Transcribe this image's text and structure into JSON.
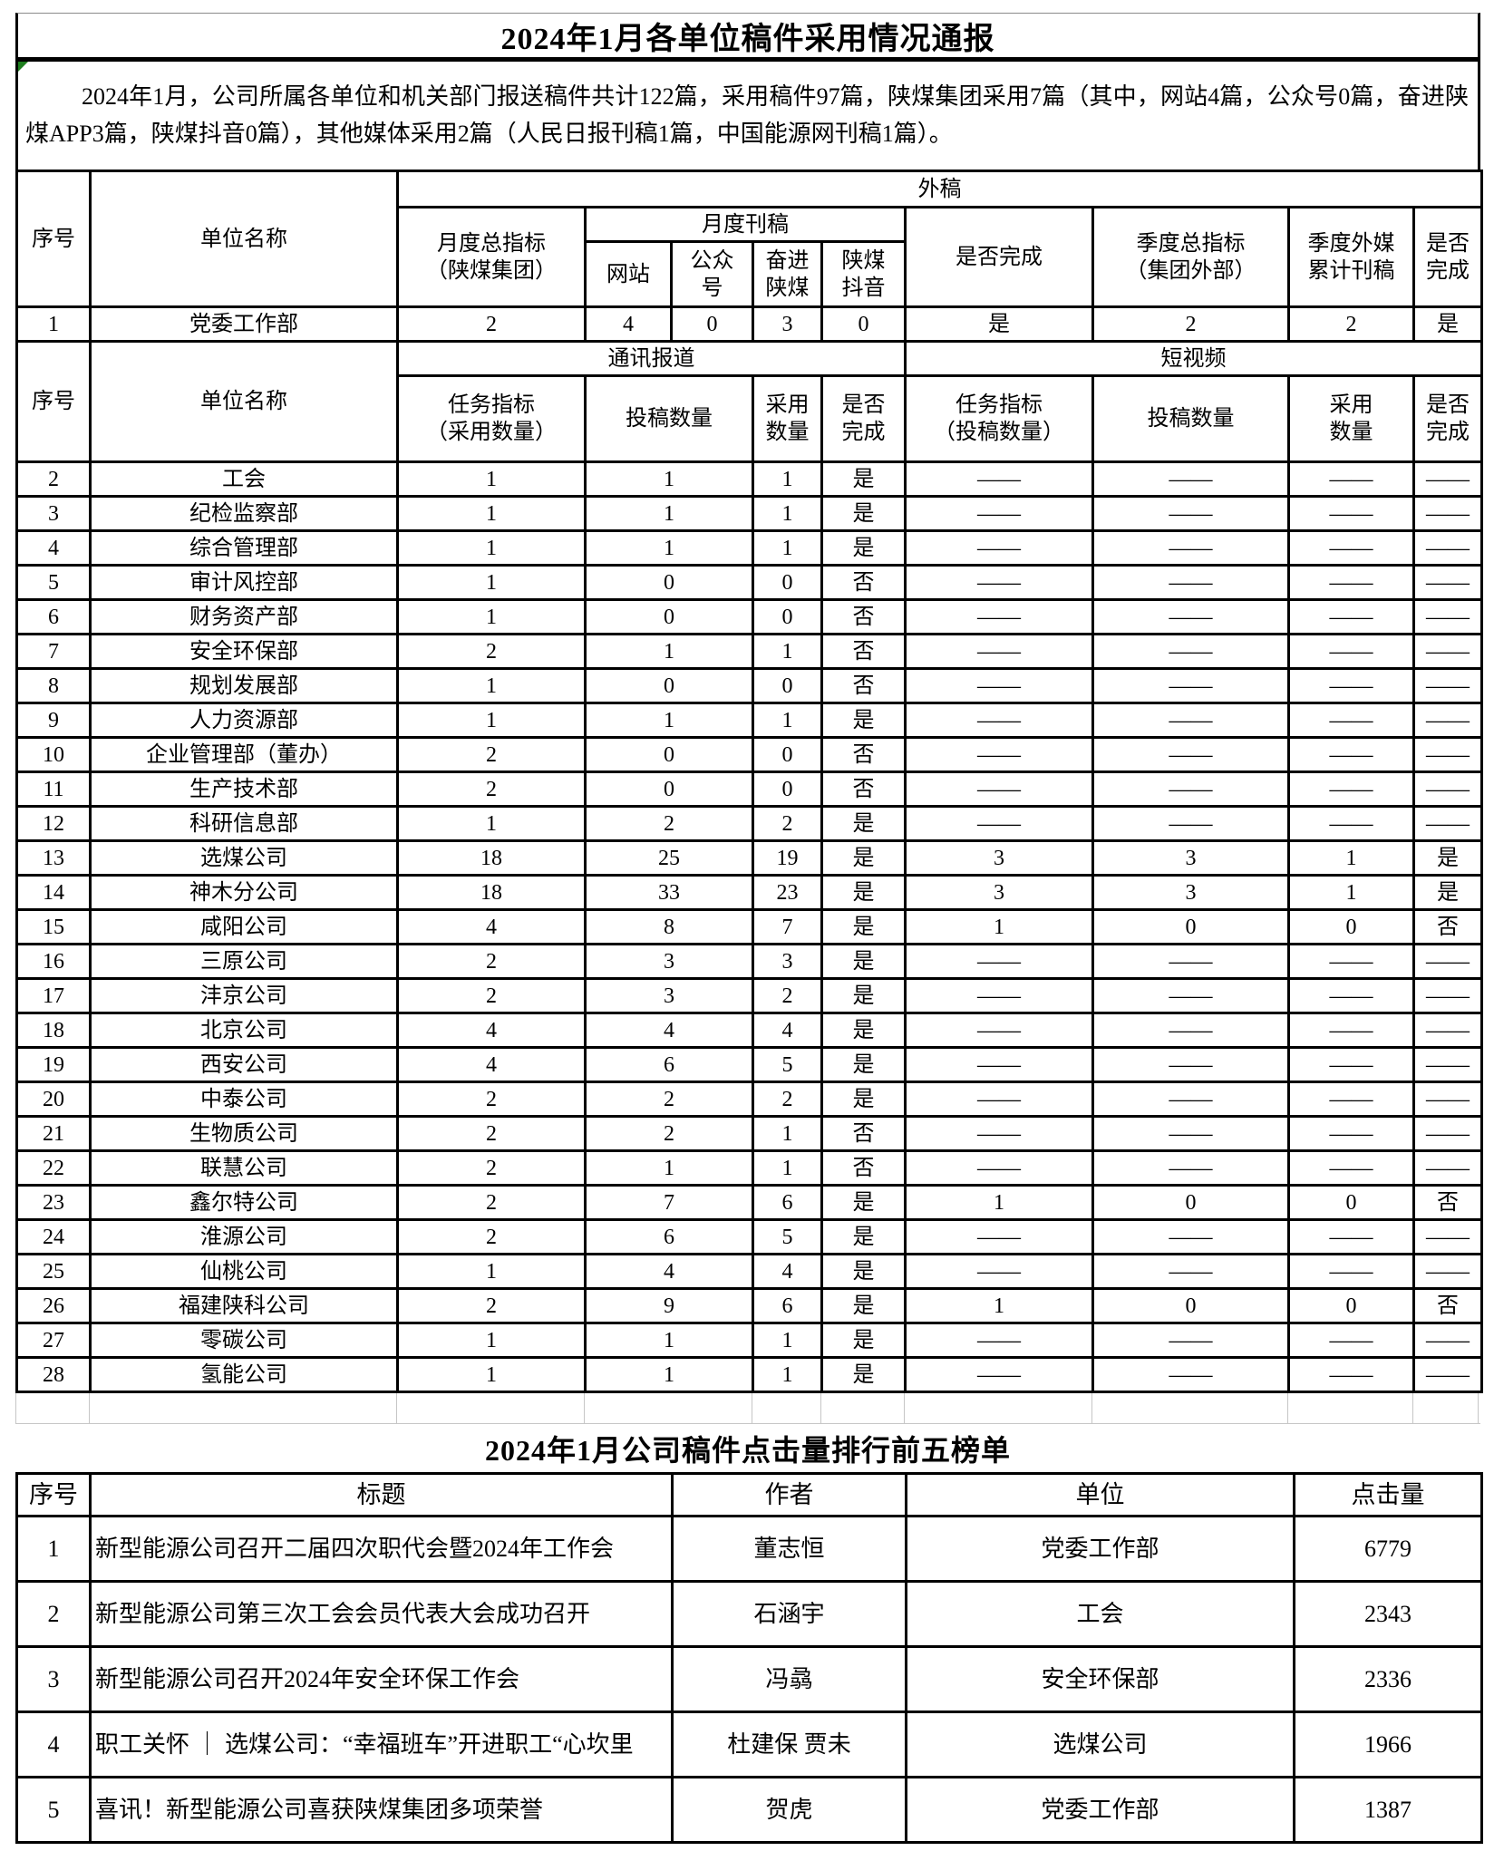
{
  "page": {
    "title1": "2024年1月各单位稿件采用情况通报",
    "intro": "2024年1月，公司所属各单位和机关部门报送稿件共计122篇，采用稿件97篇，陕煤集团采用7篇（其中，网站4篇，公众号0篇，奋进陕煤APP3篇，陕煤抖音0篇），其他媒体采用2篇（人民日报刊稿1篇，中国能源网刊稿1篇）。",
    "title2": "2024年1月公司稿件点击量排行前五榜单"
  },
  "colors": {
    "border": "#000000",
    "grid_light": "#c6c6c6",
    "corner_flag_green": "#1e7e1e"
  },
  "table1": {
    "group_header": "外稿",
    "h": {
      "xuhao": "序号",
      "danwei": "单位名称",
      "yuedu_zhibiao": "月度总指标\n（陕煤集团）",
      "yuedu_kangao": "月度刊稿",
      "wangzhan": "网站",
      "gongzhonghao": "公众\n号",
      "fenjin": "奋进\n陕煤",
      "douyin": "陕煤\n抖音",
      "wancheng": "是否完成",
      "jidu_zhibiao": "季度总指标\n（集团外部）",
      "jidu_waimei": "季度外媒\n累计刊稿",
      "wancheng2": "是否\n完成"
    },
    "row1": [
      "1",
      "党委工作部",
      "2",
      "4",
      "0",
      "3",
      "0",
      "是",
      "2",
      "2",
      "是"
    ],
    "section2": {
      "tongxun": "通讯报道",
      "duanshipin": "短视频",
      "h": {
        "xuhao": "序号",
        "danwei": "单位名称",
        "renwu": "任务指标\n（采用数量）",
        "tougao": "投稿数量",
        "caiyong": "采用\n数量",
        "wancheng": "是否\n完成",
        "renwu2": "任务指标\n（投稿数量）",
        "tougao2": "投稿数量",
        "caiyong2": "采用\n数量",
        "wancheng2": "是否\n完成"
      }
    },
    "rows": [
      [
        "2",
        "工会",
        "1",
        "1",
        "1",
        "是",
        "——",
        "——",
        "——",
        "——"
      ],
      [
        "3",
        "纪检监察部",
        "1",
        "1",
        "1",
        "是",
        "——",
        "——",
        "——",
        "——"
      ],
      [
        "4",
        "综合管理部",
        "1",
        "1",
        "1",
        "是",
        "——",
        "——",
        "——",
        "——"
      ],
      [
        "5",
        "审计风控部",
        "1",
        "0",
        "0",
        "否",
        "——",
        "——",
        "——",
        "——"
      ],
      [
        "6",
        "财务资产部",
        "1",
        "0",
        "0",
        "否",
        "——",
        "——",
        "——",
        "——"
      ],
      [
        "7",
        "安全环保部",
        "2",
        "1",
        "1",
        "否",
        "——",
        "——",
        "——",
        "——"
      ],
      [
        "8",
        "规划发展部",
        "1",
        "0",
        "0",
        "否",
        "——",
        "——",
        "——",
        "——"
      ],
      [
        "9",
        "人力资源部",
        "1",
        "1",
        "1",
        "是",
        "——",
        "——",
        "——",
        "——"
      ],
      [
        "10",
        "企业管理部（董办）",
        "2",
        "0",
        "0",
        "否",
        "——",
        "——",
        "——",
        "——"
      ],
      [
        "11",
        "生产技术部",
        "2",
        "0",
        "0",
        "否",
        "——",
        "——",
        "——",
        "——"
      ],
      [
        "12",
        "科研信息部",
        "1",
        "2",
        "2",
        "是",
        "——",
        "——",
        "——",
        "——"
      ],
      [
        "13",
        "选煤公司",
        "18",
        "25",
        "19",
        "是",
        "3",
        "3",
        "1",
        "是"
      ],
      [
        "14",
        "神木分公司",
        "18",
        "33",
        "23",
        "是",
        "3",
        "3",
        "1",
        "是"
      ],
      [
        "15",
        "咸阳公司",
        "4",
        "8",
        "7",
        "是",
        "1",
        "0",
        "0",
        "否"
      ],
      [
        "16",
        "三原公司",
        "2",
        "3",
        "3",
        "是",
        "——",
        "——",
        "——",
        "——"
      ],
      [
        "17",
        "沣京公司",
        "2",
        "3",
        "2",
        "是",
        "——",
        "——",
        "——",
        "——"
      ],
      [
        "18",
        "北京公司",
        "4",
        "4",
        "4",
        "是",
        "——",
        "——",
        "——",
        "——"
      ],
      [
        "19",
        "西安公司",
        "4",
        "6",
        "5",
        "是",
        "——",
        "——",
        "——",
        "——"
      ],
      [
        "20",
        "中泰公司",
        "2",
        "2",
        "2",
        "是",
        "——",
        "——",
        "——",
        "——"
      ],
      [
        "21",
        "生物质公司",
        "2",
        "2",
        "1",
        "否",
        "——",
        "——",
        "——",
        "——"
      ],
      [
        "22",
        "联慧公司",
        "2",
        "1",
        "1",
        "否",
        "——",
        "——",
        "——",
        "——"
      ],
      [
        "23",
        "鑫尔特公司",
        "2",
        "7",
        "6",
        "是",
        "1",
        "0",
        "0",
        "否"
      ],
      [
        "24",
        "淮源公司",
        "2",
        "6",
        "5",
        "是",
        "——",
        "——",
        "——",
        "——"
      ],
      [
        "25",
        "仙桃公司",
        "1",
        "4",
        "4",
        "是",
        "——",
        "——",
        "——",
        "——"
      ],
      [
        "26",
        "福建陕科公司",
        "2",
        "9",
        "6",
        "是",
        "1",
        "0",
        "0",
        "否"
      ],
      [
        "27",
        "零碳公司",
        "1",
        "1",
        "1",
        "是",
        "——",
        "——",
        "——",
        "——"
      ],
      [
        "28",
        "氢能公司",
        "1",
        "1",
        "1",
        "是",
        "——",
        "——",
        "——",
        "——"
      ]
    ]
  },
  "table2": {
    "headers": [
      "序号",
      "标题",
      "作者",
      "单位",
      "点击量"
    ],
    "rows": [
      [
        "1",
        "新型能源公司召开二届四次职代会暨2024年工作会",
        "董志恒",
        "党委工作部",
        "6779"
      ],
      [
        "2",
        "新型能源公司第三次工会会员代表大会成功召开",
        "石涵宇",
        "工会",
        "2343"
      ],
      [
        "3",
        "新型能源公司召开2024年安全环保工作会",
        "冯骉",
        "安全环保部",
        "2336"
      ],
      [
        "4",
        "职工关怀 ｜ 选煤公司：“幸福班车”开进职工“心坎里",
        "杜建保 贾未",
        "选煤公司",
        "1966"
      ],
      [
        "5",
        "喜讯！新型能源公司喜获陕煤集团多项荣誉",
        "贺虎",
        "党委工作部",
        "1387"
      ]
    ]
  }
}
